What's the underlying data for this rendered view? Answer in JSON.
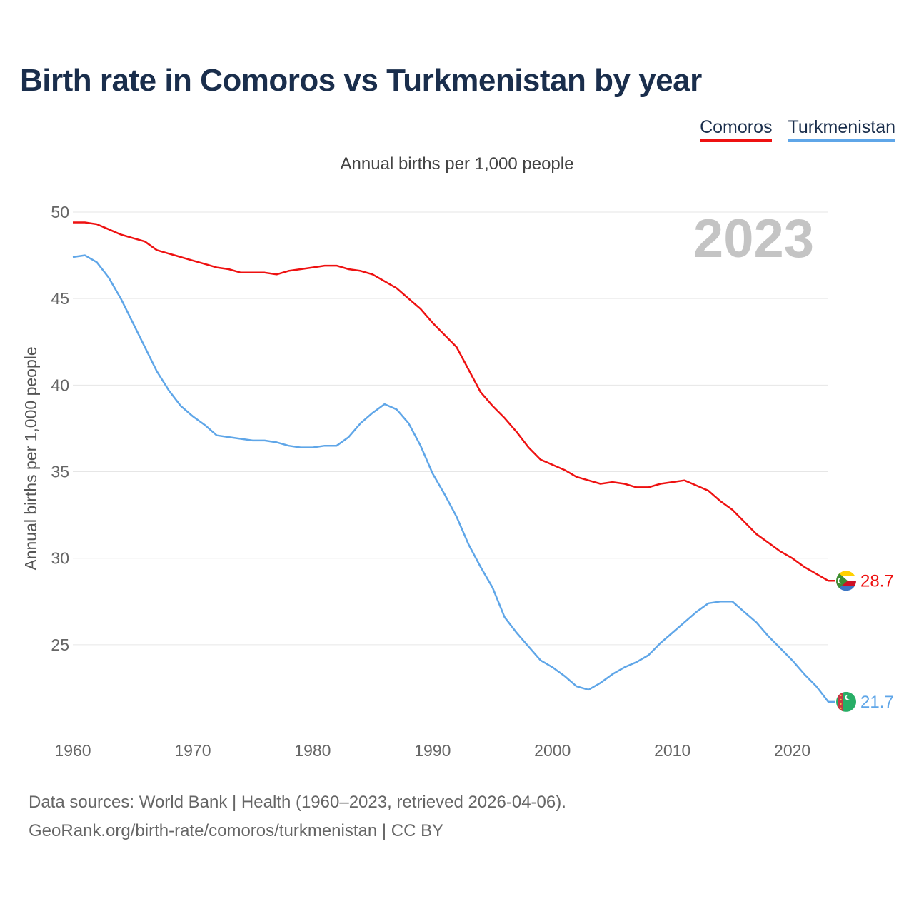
{
  "title": "Birth rate in Comoros vs Turkmenistan by year",
  "legend": {
    "comoros": "Comoros",
    "turkmenistan": "Turkmenistan"
  },
  "subtitle": "Annual births per 1,000 people",
  "year_label": "2023",
  "source": {
    "line1": "Data sources: World Bank | Health (1960–2023, retrieved 2026-04-06).",
    "line2": "GeoRank.org/birth-rate/comoros/turkmenistan | CC BY"
  },
  "colors": {
    "comoros": "#ee1111",
    "turkmenistan": "#5fa6e8",
    "grid": "#e6e6e6",
    "year": "#c4c4c4"
  },
  "chart_data": {
    "type": "line",
    "title": "Birth rate in Comoros vs Turkmenistan by year",
    "xlabel": "",
    "ylabel": "Annual births per 1,000 people",
    "xlim": [
      1960,
      2023
    ],
    "ylim": [
      20.5,
      50
    ],
    "xticks": [
      1960,
      1970,
      1980,
      1990,
      2000,
      2010,
      2020
    ],
    "yticks": [
      25,
      30,
      35,
      40,
      45,
      50
    ],
    "x": [
      1960,
      1961,
      1962,
      1963,
      1964,
      1965,
      1966,
      1967,
      1968,
      1969,
      1970,
      1971,
      1972,
      1973,
      1974,
      1975,
      1976,
      1977,
      1978,
      1979,
      1980,
      1981,
      1982,
      1983,
      1984,
      1985,
      1986,
      1987,
      1988,
      1989,
      1990,
      1991,
      1992,
      1993,
      1994,
      1995,
      1996,
      1997,
      1998,
      1999,
      2000,
      2001,
      2002,
      2003,
      2004,
      2005,
      2006,
      2007,
      2008,
      2009,
      2010,
      2011,
      2012,
      2013,
      2014,
      2015,
      2016,
      2017,
      2018,
      2019,
      2020,
      2021,
      2022,
      2023
    ],
    "series": [
      {
        "name": "Comoros",
        "end_label": "28.7",
        "values": [
          49.4,
          49.4,
          49.3,
          49.0,
          48.7,
          48.5,
          48.3,
          47.8,
          47.6,
          47.4,
          47.2,
          47.0,
          46.8,
          46.7,
          46.5,
          46.5,
          46.5,
          46.4,
          46.6,
          46.7,
          46.8,
          46.9,
          46.9,
          46.7,
          46.6,
          46.4,
          46.0,
          45.6,
          45.0,
          44.4,
          43.6,
          42.9,
          42.2,
          40.9,
          39.6,
          38.8,
          38.1,
          37.3,
          36.4,
          35.7,
          35.4,
          35.1,
          34.7,
          34.5,
          34.3,
          34.4,
          34.3,
          34.1,
          34.1,
          34.3,
          34.4,
          34.5,
          34.2,
          33.9,
          33.3,
          32.8,
          32.1,
          31.4,
          30.9,
          30.4,
          30.0,
          29.5,
          29.1,
          28.7
        ]
      },
      {
        "name": "Turkmenistan",
        "end_label": "21.7",
        "values": [
          47.4,
          47.5,
          47.1,
          46.2,
          45.0,
          43.6,
          42.2,
          40.8,
          39.7,
          38.8,
          38.2,
          37.7,
          37.1,
          37.0,
          36.9,
          36.8,
          36.8,
          36.7,
          36.5,
          36.4,
          36.4,
          36.5,
          36.5,
          37.0,
          37.8,
          38.4,
          38.9,
          38.6,
          37.8,
          36.5,
          34.9,
          33.7,
          32.4,
          30.8,
          29.5,
          28.3,
          26.6,
          25.7,
          24.9,
          24.1,
          23.7,
          23.2,
          22.6,
          22.4,
          22.8,
          23.3,
          23.7,
          24.0,
          24.4,
          25.1,
          25.7,
          26.3,
          26.9,
          27.4,
          27.5,
          27.5,
          26.9,
          26.3,
          25.5,
          24.8,
          24.1,
          23.3,
          22.6,
          21.7
        ]
      }
    ]
  }
}
